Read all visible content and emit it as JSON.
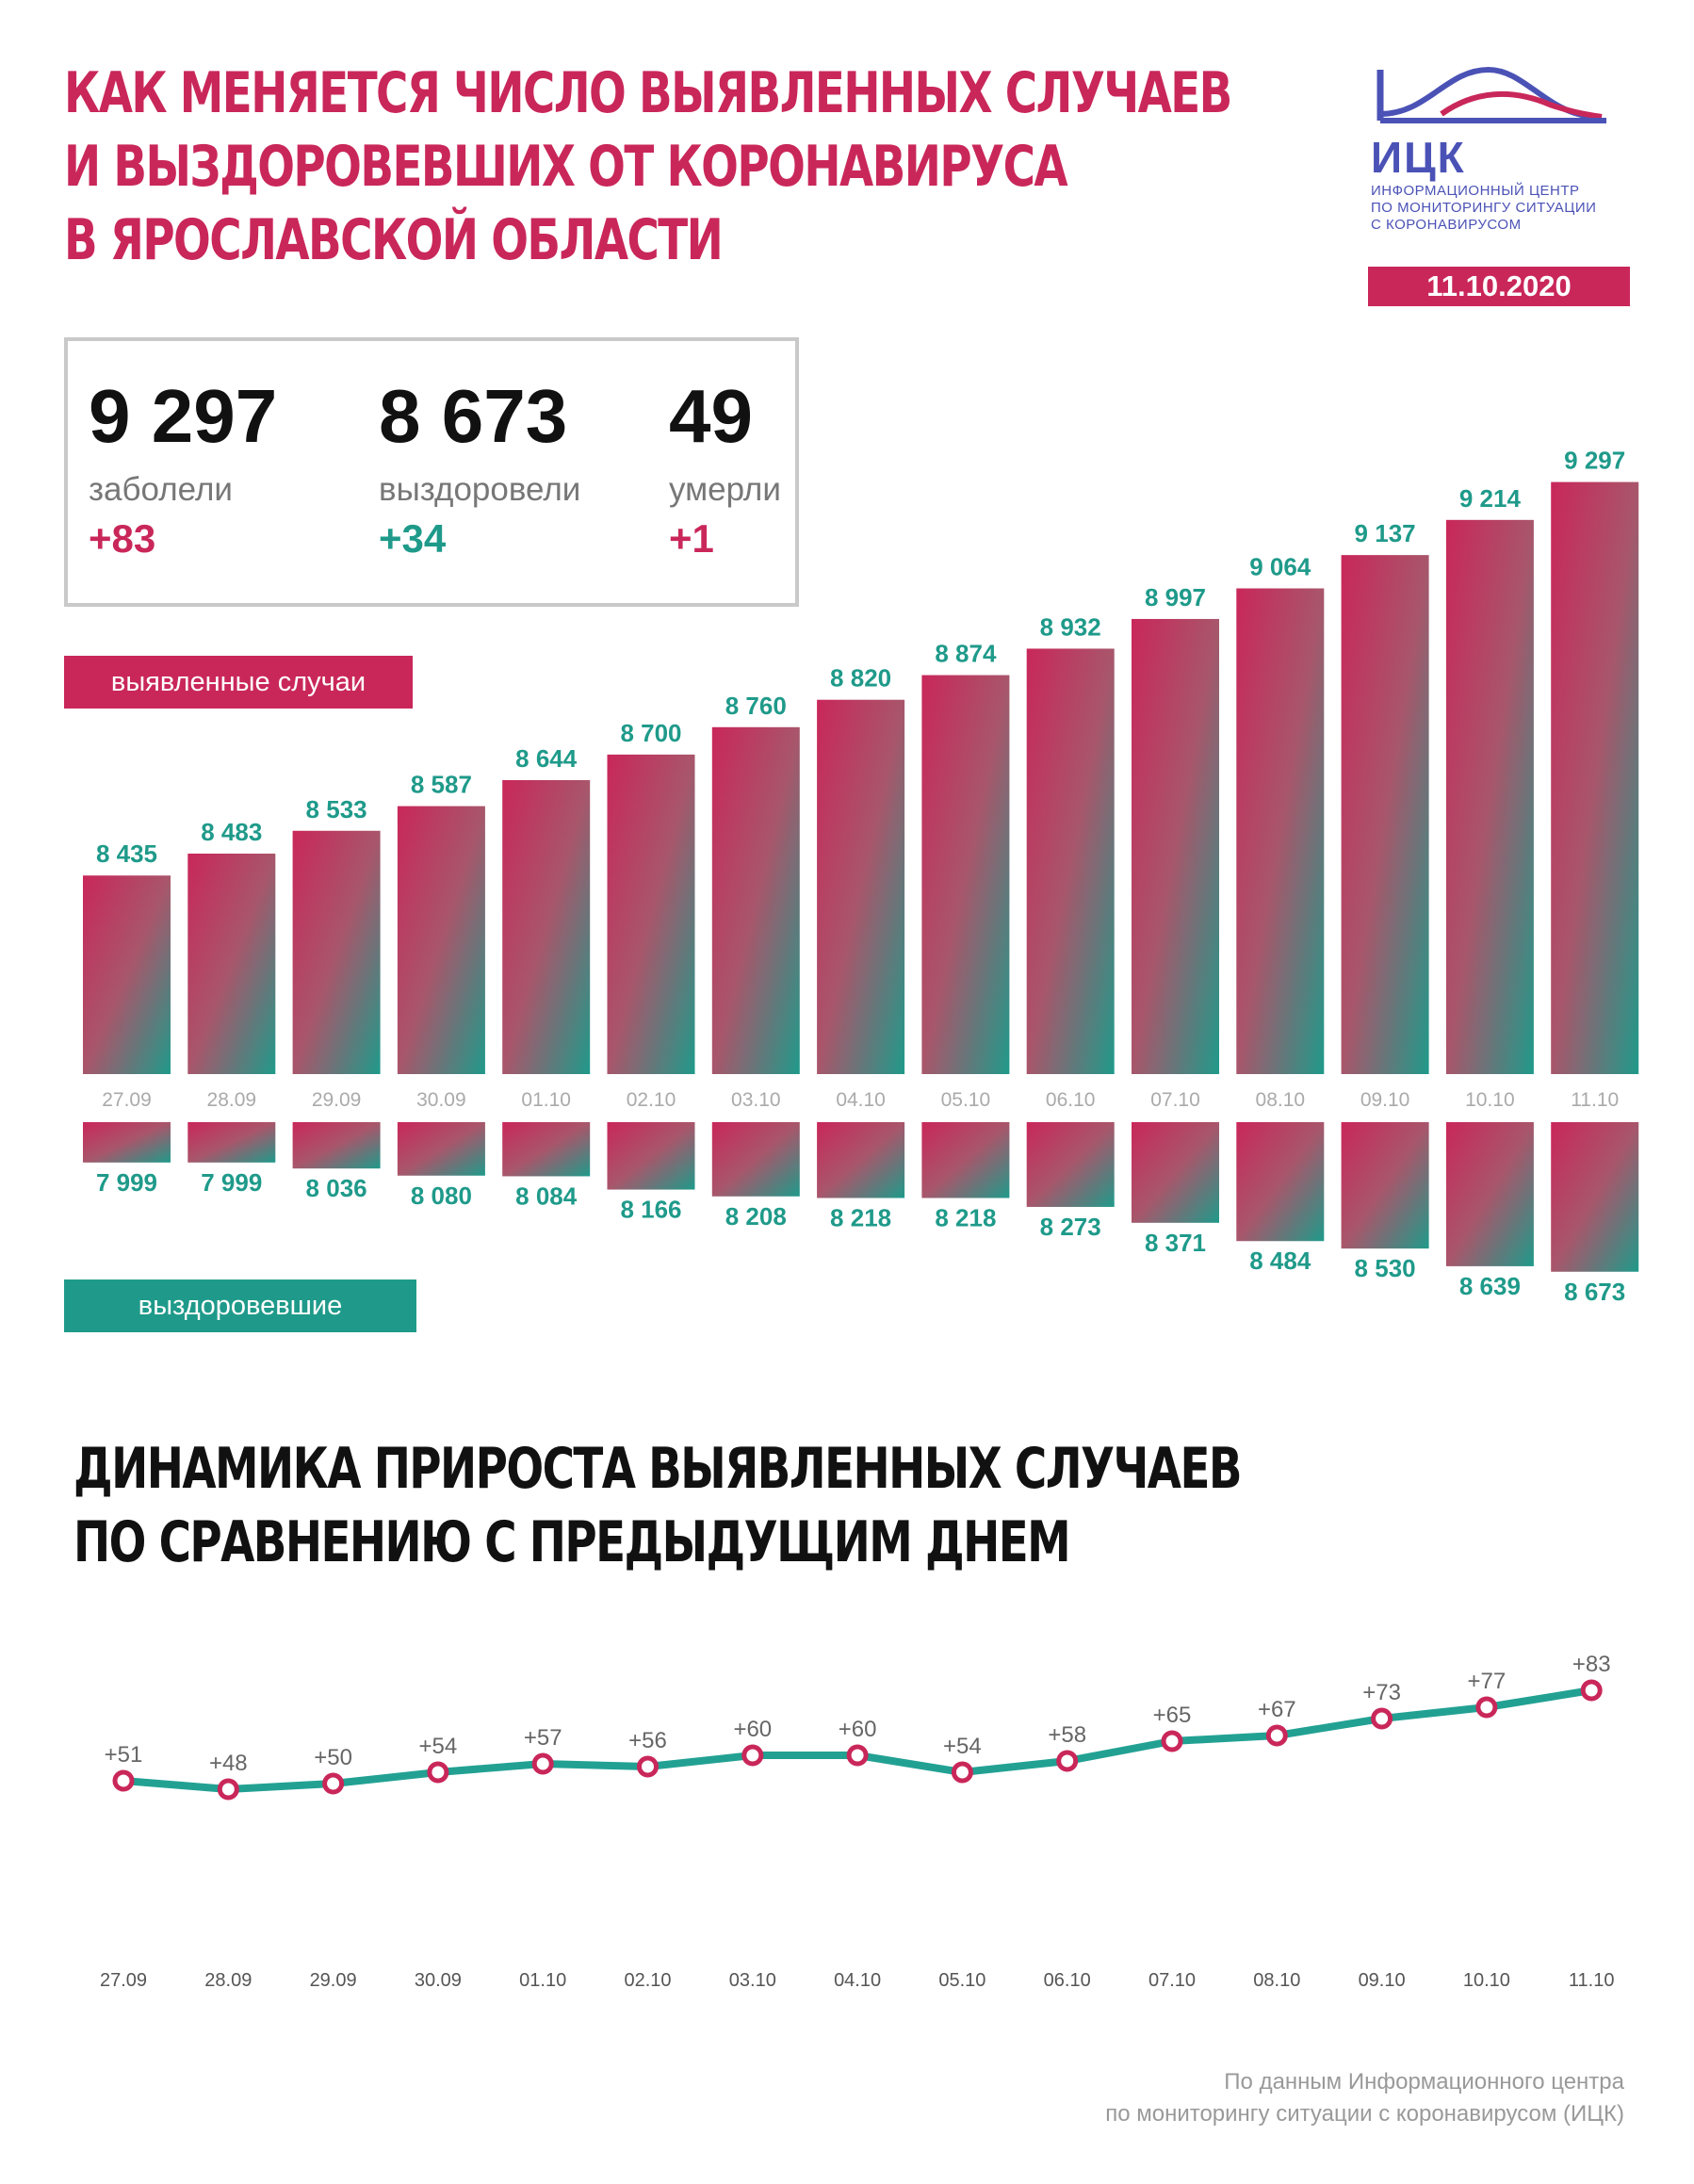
{
  "title_lines": [
    "КАК МЕНЯЕТСЯ ЧИСЛО ВЫЯВЛЕННЫХ СЛУЧАЕВ",
    "И ВЫЗДОРОВЕВШИХ ОТ КОРОНАВИРУСА",
    "В ЯРОСЛАВСКОЙ ОБЛАСТИ"
  ],
  "logo": {
    "name": "ИЦК",
    "subtitle_lines": [
      "ИНФОРМАЦИОННЫЙ ЦЕНТР",
      "ПО МОНИТОРИНГУ СИТУАЦИИ",
      "С КОРОНАВИРУСОМ"
    ],
    "color": "#4b52b6"
  },
  "date": "11.10.2020",
  "stats": [
    {
      "value": "9 297",
      "label": "заболели",
      "delta": "+83"
    },
    {
      "value": "8 673",
      "label": "выздоровели",
      "delta": "+34"
    },
    {
      "value": "49",
      "label": "умерли",
      "delta": "+1"
    }
  ],
  "colors": {
    "accent": "#c9275a",
    "teal": "#1f9a8a",
    "line": "#22a193"
  },
  "labels": {
    "cases": "выявленные случаи",
    "recovered": "выздоровевшие"
  },
  "dynamics_title_lines": [
    "ДИНАМИКА ПРИРОСТА ВЫЯВЛЕННЫХ СЛУЧАЕВ",
    "ПО СРАВНЕНИЮ С ПРЕДЫДУЩИМ ДНЕМ"
  ],
  "source_lines": [
    "По данным Информационного центра",
    "по мониторингу ситуации с коронавирусом (ИЦК)"
  ],
  "chart_data": [
    {
      "type": "bar",
      "categories": [
        "27.09",
        "28.09",
        "29.09",
        "30.09",
        "01.10",
        "02.10",
        "03.10",
        "04.10",
        "05.10",
        "06.10",
        "07.10",
        "08.10",
        "09.10",
        "10.10",
        "11.10"
      ],
      "series": [
        {
          "name": "выявленные случаи",
          "values": [
            8435,
            8483,
            8533,
            8587,
            8644,
            8700,
            8760,
            8820,
            8874,
            8932,
            8997,
            9064,
            9137,
            9214,
            9297
          ],
          "labels": [
            "8 435",
            "8 483",
            "8 533",
            "8 587",
            "8 644",
            "8 700",
            "8 760",
            "8 820",
            "8 874",
            "8 932",
            "8 997",
            "9 064",
            "9 137",
            "9 214",
            "9 297"
          ]
        },
        {
          "name": "выздоровевшие",
          "values": [
            7999,
            7999,
            8036,
            8080,
            8084,
            8166,
            8208,
            8218,
            8218,
            8273,
            8371,
            8484,
            8530,
            8639,
            8673
          ],
          "labels": [
            "7 999",
            "7 999",
            "8 036",
            "8 080",
            "8 084",
            "8 166",
            "8 208",
            "8 218",
            "8 218",
            "8 273",
            "8 371",
            "8 484",
            "8 530",
            "8 639",
            "8 673"
          ]
        }
      ]
    },
    {
      "type": "line",
      "categories": [
        "27.09",
        "28.09",
        "29.09",
        "30.09",
        "01.10",
        "02.10",
        "03.10",
        "04.10",
        "05.10",
        "06.10",
        "07.10",
        "08.10",
        "09.10",
        "10.10",
        "11.10"
      ],
      "values": [
        51,
        48,
        50,
        54,
        57,
        56,
        60,
        60,
        54,
        58,
        65,
        67,
        73,
        77,
        83
      ],
      "labels": [
        "+51",
        "+48",
        "+50",
        "+54",
        "+57",
        "+56",
        "+60",
        "+60",
        "+54",
        "+58",
        "+65",
        "+67",
        "+73",
        "+77",
        "+83"
      ]
    }
  ]
}
